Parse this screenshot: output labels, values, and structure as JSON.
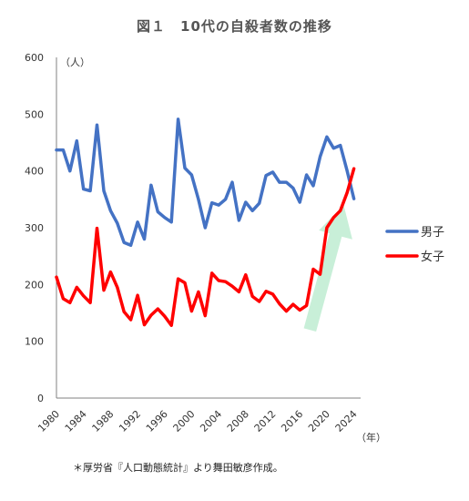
{
  "chart_data": {
    "type": "line",
    "title": "図１　10代の自殺者数の推移",
    "ylabel": "（人）",
    "xlabel": "（年）",
    "ylim": [
      0,
      600
    ],
    "yticks": [
      0,
      100,
      200,
      300,
      400,
      500,
      600
    ],
    "xlim": [
      1980,
      2025
    ],
    "xticks": [
      1980,
      1984,
      1988,
      1992,
      1996,
      2000,
      2004,
      2008,
      2012,
      2016,
      2020,
      2024
    ],
    "grid": false,
    "legend": "right",
    "series": [
      {
        "name": "男子",
        "color": "#4472C4",
        "x": [
          1980,
          1981,
          1982,
          1983,
          1984,
          1985,
          1986,
          1987,
          1988,
          1989,
          1990,
          1991,
          1992,
          1993,
          1994,
          1995,
          1996,
          1997,
          1998,
          1999,
          2000,
          2001,
          2002,
          2003,
          2004,
          2005,
          2006,
          2007,
          2008,
          2009,
          2010,
          2011,
          2012,
          2013,
          2014,
          2015,
          2016,
          2017,
          2018,
          2019,
          2020,
          2021,
          2022,
          2023,
          2024
        ],
        "values": [
          437,
          437,
          400,
          453,
          368,
          365,
          481,
          365,
          330,
          308,
          274,
          269,
          310,
          280,
          375,
          328,
          318,
          310,
          491,
          405,
          393,
          350,
          300,
          344,
          340,
          350,
          380,
          313,
          345,
          330,
          343,
          392,
          398,
          380,
          380,
          370,
          345,
          393,
          374,
          425,
          460,
          440,
          445,
          400,
          351
        ]
      },
      {
        "name": "女子",
        "color": "#FF0000",
        "x": [
          1980,
          1981,
          1982,
          1983,
          1984,
          1985,
          1986,
          1987,
          1988,
          1989,
          1990,
          1991,
          1992,
          1993,
          1994,
          1995,
          1996,
          1997,
          1998,
          1999,
          2000,
          2001,
          2002,
          2003,
          2004,
          2005,
          2006,
          2007,
          2008,
          2009,
          2010,
          2011,
          2012,
          2013,
          2014,
          2015,
          2016,
          2017,
          2018,
          2019,
          2020,
          2021,
          2022,
          2023,
          2024
        ],
        "values": [
          213,
          175,
          168,
          195,
          180,
          168,
          299,
          190,
          222,
          195,
          152,
          138,
          181,
          129,
          146,
          157,
          144,
          128,
          210,
          203,
          153,
          187,
          145,
          220,
          207,
          205,
          197,
          187,
          217,
          179,
          170,
          188,
          183,
          166,
          153,
          165,
          155,
          163,
          227,
          218,
          300,
          318,
          330,
          362,
          404
        ]
      }
    ],
    "annotations": [
      {
        "type": "arrow",
        "color": "#C8EFD8",
        "from": [
          2017.5,
          120
        ],
        "to": [
          2022.5,
          340
        ]
      }
    ]
  },
  "source_note": "＊厚労省『人口動態統計』より舞田敏彦作成。"
}
